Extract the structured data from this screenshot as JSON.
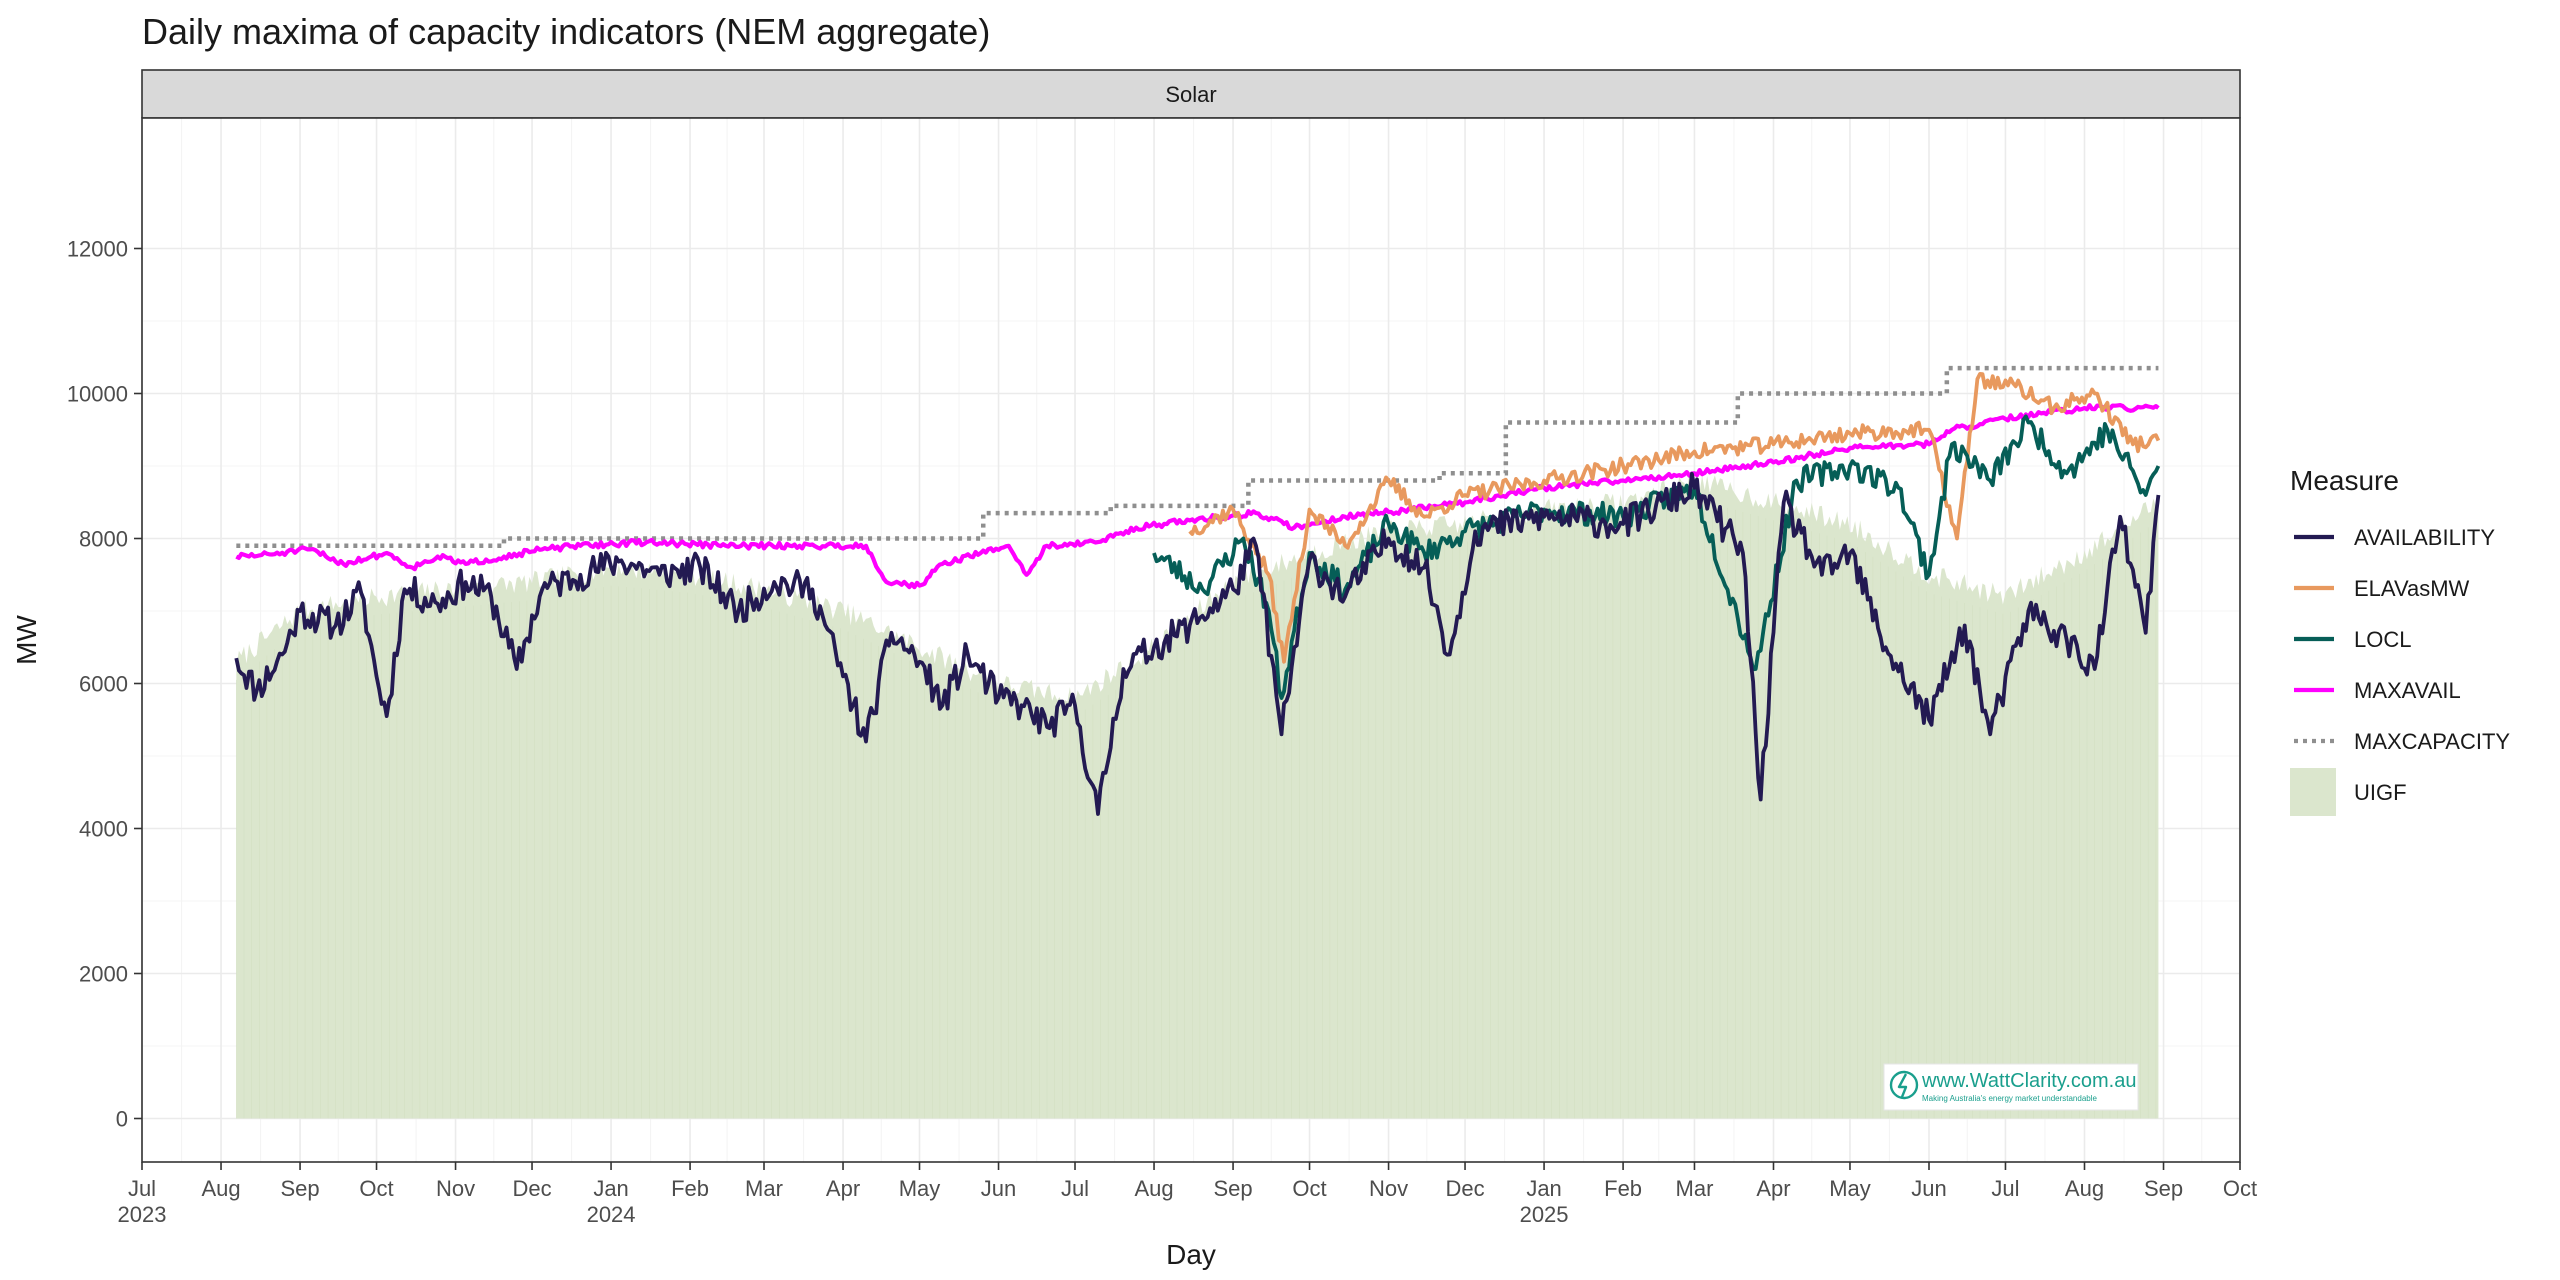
{
  "chart_data": {
    "type": "line",
    "title": "Daily maxima of capacity indicators (NEM aggregate)",
    "facet": "Solar",
    "xlabel": "Day",
    "ylabel": "MW",
    "xlim": [
      "2023-07-01",
      "2025-10-01"
    ],
    "ylim": [
      -600,
      13800
    ],
    "y_ticks": [
      0,
      2000,
      4000,
      6000,
      8000,
      10000,
      12000
    ],
    "y_tick_labels": [
      "0",
      "2000",
      "4000",
      "6000",
      "8000",
      "10000",
      "12000"
    ],
    "x_ticks": [
      {
        "date": "2023-07-01",
        "label": "Jul",
        "year": "2023"
      },
      {
        "date": "2023-08-01",
        "label": "Aug",
        "year": ""
      },
      {
        "date": "2023-09-01",
        "label": "Sep",
        "year": ""
      },
      {
        "date": "2023-10-01",
        "label": "Oct",
        "year": ""
      },
      {
        "date": "2023-11-01",
        "label": "Nov",
        "year": ""
      },
      {
        "date": "2023-12-01",
        "label": "Dec",
        "year": ""
      },
      {
        "date": "2024-01-01",
        "label": "Jan",
        "year": "2024"
      },
      {
        "date": "2024-02-01",
        "label": "Feb",
        "year": ""
      },
      {
        "date": "2024-03-01",
        "label": "Mar",
        "year": ""
      },
      {
        "date": "2024-04-01",
        "label": "Apr",
        "year": ""
      },
      {
        "date": "2024-05-01",
        "label": "May",
        "year": ""
      },
      {
        "date": "2024-06-01",
        "label": "Jun",
        "year": ""
      },
      {
        "date": "2024-07-01",
        "label": "Jul",
        "year": ""
      },
      {
        "date": "2024-08-01",
        "label": "Aug",
        "year": ""
      },
      {
        "date": "2024-09-01",
        "label": "Sep",
        "year": ""
      },
      {
        "date": "2024-10-01",
        "label": "Oct",
        "year": ""
      },
      {
        "date": "2024-11-01",
        "label": "Nov",
        "year": ""
      },
      {
        "date": "2024-12-01",
        "label": "Dec",
        "year": ""
      },
      {
        "date": "2025-01-01",
        "label": "Jan",
        "year": "2025"
      },
      {
        "date": "2025-02-01",
        "label": "Feb",
        "year": ""
      },
      {
        "date": "2025-03-01",
        "label": "Mar",
        "year": ""
      },
      {
        "date": "2025-04-01",
        "label": "Apr",
        "year": ""
      },
      {
        "date": "2025-05-01",
        "label": "May",
        "year": ""
      },
      {
        "date": "2025-06-01",
        "label": "Jun",
        "year": ""
      },
      {
        "date": "2025-07-01",
        "label": "Jul",
        "year": ""
      },
      {
        "date": "2025-08-01",
        "label": "Aug",
        "year": ""
      },
      {
        "date": "2025-09-01",
        "label": "Sep",
        "year": ""
      },
      {
        "date": "2025-10-01",
        "label": "Oct",
        "year": ""
      }
    ],
    "grid": true,
    "legend": {
      "title": "Measure",
      "position": "right",
      "entries": [
        {
          "name": "AVAILABILITY",
          "style": "line",
          "color": "#231a52"
        },
        {
          "name": "ELAVasMW",
          "style": "line",
          "color": "#e8995e"
        },
        {
          "name": "LOCL",
          "style": "line",
          "color": "#065e57"
        },
        {
          "name": "MAXAVAIL",
          "style": "line",
          "color": "#ff00ff"
        },
        {
          "name": "MAXCAPACITY",
          "style": "dotted",
          "color": "#8f8f8f"
        },
        {
          "name": "UIGF",
          "style": "fill",
          "color": "#dbe6cd"
        }
      ]
    },
    "series": [
      {
        "name": "MAXCAPACITY",
        "kind": "step",
        "color": "#8f8f8f",
        "points": [
          [
            "2023-08-07",
            7900
          ],
          [
            "2023-11-20",
            8000
          ],
          [
            "2024-05-26",
            8350
          ],
          [
            "2024-07-15",
            8450
          ],
          [
            "2024-09-07",
            8800
          ],
          [
            "2024-11-21",
            8900
          ],
          [
            "2024-12-17",
            9600
          ],
          [
            "2025-03-18",
            10000
          ],
          [
            "2025-06-08",
            10350
          ],
          [
            "2025-08-30",
            10350
          ]
        ]
      },
      {
        "name": "MAXAVAIL",
        "kind": "line",
        "color": "#ff00ff",
        "points": [
          [
            "2023-08-07",
            7750
          ],
          [
            "2023-08-20",
            7780
          ],
          [
            "2023-09-05",
            7850
          ],
          [
            "2023-09-18",
            7650
          ],
          [
            "2023-10-05",
            7800
          ],
          [
            "2023-10-15",
            7600
          ],
          [
            "2023-10-25",
            7750
          ],
          [
            "2023-11-05",
            7650
          ],
          [
            "2023-11-20",
            7750
          ],
          [
            "2023-12-05",
            7850
          ],
          [
            "2023-12-20",
            7900
          ],
          [
            "2024-01-15",
            7950
          ],
          [
            "2024-02-15",
            7900
          ],
          [
            "2024-03-15",
            7900
          ],
          [
            "2024-04-10",
            7900
          ],
          [
            "2024-04-18",
            7400
          ],
          [
            "2024-05-01",
            7350
          ],
          [
            "2024-05-10",
            7650
          ],
          [
            "2024-05-25",
            7800
          ],
          [
            "2024-06-05",
            7900
          ],
          [
            "2024-06-12",
            7500
          ],
          [
            "2024-06-20",
            7900
          ],
          [
            "2024-07-10",
            7950
          ],
          [
            "2024-07-25",
            8150
          ],
          [
            "2024-08-15",
            8250
          ],
          [
            "2024-09-10",
            8350
          ],
          [
            "2024-09-25",
            8150
          ],
          [
            "2024-10-15",
            8300
          ],
          [
            "2024-11-10",
            8400
          ],
          [
            "2024-12-01",
            8500
          ],
          [
            "2025-01-01",
            8700
          ],
          [
            "2025-02-01",
            8800
          ],
          [
            "2025-03-01",
            8900
          ],
          [
            "2025-04-01",
            9050
          ],
          [
            "2025-05-01",
            9250
          ],
          [
            "2025-06-01",
            9300
          ],
          [
            "2025-06-10",
            9500
          ],
          [
            "2025-07-01",
            9650
          ],
          [
            "2025-08-01",
            9800
          ],
          [
            "2025-08-30",
            9800
          ]
        ]
      },
      {
        "name": "ELAVasMW",
        "kind": "line",
        "color": "#e8995e",
        "points": [
          [
            "2024-08-15",
            8100
          ],
          [
            "2024-09-01",
            8400
          ],
          [
            "2024-09-15",
            7500
          ],
          [
            "2024-09-21",
            6300
          ],
          [
            "2024-10-01",
            8400
          ],
          [
            "2024-10-15",
            7900
          ],
          [
            "2024-11-01",
            8800
          ],
          [
            "2024-11-15",
            8300
          ],
          [
            "2024-12-01",
            8600
          ],
          [
            "2025-01-01",
            8800
          ],
          [
            "2025-02-01",
            9000
          ],
          [
            "2025-03-01",
            9200
          ],
          [
            "2025-04-01",
            9300
          ],
          [
            "2025-05-01",
            9450
          ],
          [
            "2025-06-01",
            9500
          ],
          [
            "2025-06-12",
            8000
          ],
          [
            "2025-06-20",
            10200
          ],
          [
            "2025-07-05",
            10100
          ],
          [
            "2025-07-20",
            9800
          ],
          [
            "2025-08-05",
            10000
          ],
          [
            "2025-08-20",
            9300
          ],
          [
            "2025-08-30",
            9350
          ]
        ]
      },
      {
        "name": "LOCL",
        "kind": "line",
        "color": "#065e57",
        "points": [
          [
            "2024-08-01",
            7800
          ],
          [
            "2024-08-20",
            7300
          ],
          [
            "2024-09-05",
            8000
          ],
          [
            "2024-09-15",
            7000
          ],
          [
            "2024-09-20",
            5800
          ],
          [
            "2024-10-01",
            7800
          ],
          [
            "2024-10-15",
            7300
          ],
          [
            "2024-11-01",
            8200
          ],
          [
            "2024-11-15",
            7800
          ],
          [
            "2024-12-01",
            8100
          ],
          [
            "2025-01-01",
            8400
          ],
          [
            "2025-02-01",
            8300
          ],
          [
            "2025-03-01",
            8700
          ],
          [
            "2025-03-25",
            6200
          ],
          [
            "2025-04-10",
            8800
          ],
          [
            "2025-05-01",
            9000
          ],
          [
            "2025-05-20",
            8700
          ],
          [
            "2025-06-01",
            7500
          ],
          [
            "2025-06-10",
            9300
          ],
          [
            "2025-06-25",
            8800
          ],
          [
            "2025-07-10",
            9600
          ],
          [
            "2025-07-25",
            8900
          ],
          [
            "2025-08-10",
            9500
          ],
          [
            "2025-08-25",
            8600
          ],
          [
            "2025-08-30",
            9000
          ]
        ]
      },
      {
        "name": "AVAILABILITY",
        "kind": "line",
        "color": "#231a52",
        "points": [
          [
            "2023-08-07",
            6350
          ],
          [
            "2023-08-15",
            5900
          ],
          [
            "2023-08-25",
            6400
          ],
          [
            "2023-09-01",
            7000
          ],
          [
            "2023-09-15",
            6800
          ],
          [
            "2023-09-25",
            7250
          ],
          [
            "2023-10-01",
            6100
          ],
          [
            "2023-10-05",
            5550
          ],
          [
            "2023-10-12",
            7300
          ],
          [
            "2023-10-25",
            7100
          ],
          [
            "2023-11-05",
            7400
          ],
          [
            "2023-11-15",
            7200
          ],
          [
            "2023-11-25",
            6200
          ],
          [
            "2023-12-05",
            7300
          ],
          [
            "2023-12-20",
            7500
          ],
          [
            "2024-01-05",
            7700
          ],
          [
            "2024-01-20",
            7500
          ],
          [
            "2024-02-05",
            7600
          ],
          [
            "2024-02-20",
            7000
          ],
          [
            "2024-03-05",
            7400
          ],
          [
            "2024-03-20",
            7300
          ],
          [
            "2024-04-01",
            6100
          ],
          [
            "2024-04-10",
            5200
          ],
          [
            "2024-04-20",
            6700
          ],
          [
            "2024-05-01",
            6300
          ],
          [
            "2024-05-10",
            5700
          ],
          [
            "2024-05-20",
            6400
          ],
          [
            "2024-06-01",
            5800
          ],
          [
            "2024-06-10",
            5700
          ],
          [
            "2024-06-20",
            5400
          ],
          [
            "2024-07-01",
            5700
          ],
          [
            "2024-07-10",
            4200
          ],
          [
            "2024-07-20",
            6200
          ],
          [
            "2024-08-01",
            6500
          ],
          [
            "2024-08-15",
            6800
          ],
          [
            "2024-09-01",
            7300
          ],
          [
            "2024-09-10",
            7900
          ],
          [
            "2024-09-20",
            5300
          ],
          [
            "2024-10-01",
            7700
          ],
          [
            "2024-10-15",
            7200
          ],
          [
            "2024-11-01",
            8000
          ],
          [
            "2024-11-15",
            7600
          ],
          [
            "2024-11-25",
            6400
          ],
          [
            "2024-12-05",
            8100
          ],
          [
            "2025-01-01",
            8300
          ],
          [
            "2025-02-01",
            8200
          ],
          [
            "2025-03-01",
            8700
          ],
          [
            "2025-03-20",
            7800
          ],
          [
            "2025-03-27",
            4400
          ],
          [
            "2025-04-05",
            8500
          ],
          [
            "2025-04-20",
            7500
          ],
          [
            "2025-05-01",
            7800
          ],
          [
            "2025-05-15",
            6500
          ],
          [
            "2025-06-01",
            5500
          ],
          [
            "2025-06-15",
            6800
          ],
          [
            "2025-06-25",
            5300
          ],
          [
            "2025-07-10",
            7000
          ],
          [
            "2025-07-25",
            6600
          ],
          [
            "2025-08-05",
            6200
          ],
          [
            "2025-08-15",
            8300
          ],
          [
            "2025-08-25",
            6700
          ],
          [
            "2025-08-30",
            8600
          ]
        ]
      },
      {
        "name": "UIGF",
        "kind": "area",
        "color": "#dbe6cd",
        "points": [
          [
            "2023-08-07",
            6300
          ],
          [
            "2023-09-01",
            7000
          ],
          [
            "2023-10-01",
            7200
          ],
          [
            "2023-11-01",
            7300
          ],
          [
            "2023-12-01",
            7400
          ],
          [
            "2024-01-01",
            7600
          ],
          [
            "2024-02-01",
            7500
          ],
          [
            "2024-03-01",
            7300
          ],
          [
            "2024-04-01",
            7000
          ],
          [
            "2024-05-01",
            6500
          ],
          [
            "2024-06-01",
            6000
          ],
          [
            "2024-07-01",
            5800
          ],
          [
            "2024-08-01",
            6500
          ],
          [
            "2024-09-01",
            7400
          ],
          [
            "2024-10-01",
            7800
          ],
          [
            "2024-11-01",
            8100
          ],
          [
            "2024-12-01",
            8200
          ],
          [
            "2025-01-01",
            8400
          ],
          [
            "2025-02-01",
            8500
          ],
          [
            "2025-03-01",
            8800
          ],
          [
            "2025-04-01",
            8500
          ],
          [
            "2025-05-01",
            8200
          ],
          [
            "2025-06-01",
            7500
          ],
          [
            "2025-07-01",
            7200
          ],
          [
            "2025-08-01",
            7800
          ],
          [
            "2025-08-30",
            8500
          ]
        ]
      }
    ]
  },
  "watermark": {
    "text": "www.WattClarity.com.au",
    "tagline": "Making Australia's energy market understandable"
  }
}
